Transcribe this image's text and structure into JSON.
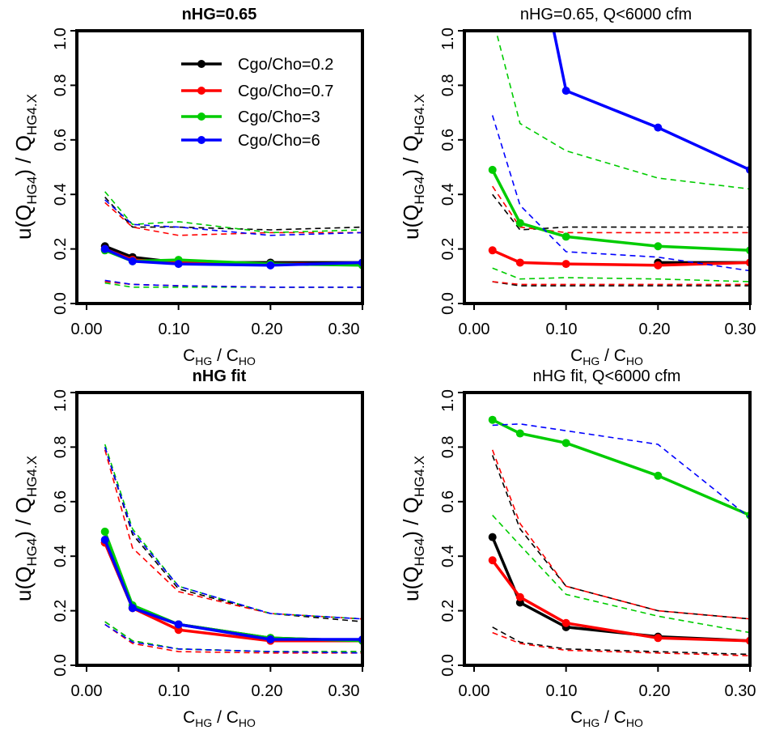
{
  "colors": {
    "black": "#000000",
    "red": "#ff0000",
    "green": "#00cc00",
    "blue": "#0000ff"
  },
  "chart_data": [
    {
      "type": "line",
      "title": "nHG=0.65",
      "xlabel": {
        "base": "C",
        "sub1": "HG",
        "mid": " / C",
        "sub2": "HO"
      },
      "ylabel": {
        "pre": "u(Q",
        "sub1": "HG4",
        "mid": ") / Q",
        "sub2": "HG4.X"
      },
      "xlim": [
        0.0,
        0.3
      ],
      "ylim": [
        0.0,
        1.0
      ],
      "xticks": [
        "0.00",
        "0.10",
        "0.20",
        "0.30"
      ],
      "yticks": [
        "0.0",
        "0.2",
        "0.4",
        "0.6",
        "0.8",
        "1.0"
      ],
      "legend": "top-right",
      "x": [
        0.02,
        0.05,
        0.1,
        0.2,
        0.3
      ],
      "series": [
        {
          "name": "Cgo/Cho=0.2",
          "color": "black",
          "values": [
            0.21,
            0.17,
            0.15,
            0.15,
            0.15
          ],
          "upper": [
            0.39,
            0.28,
            0.28,
            0.27,
            0.28
          ],
          "lower": [
            0.08,
            0.07,
            0.065,
            0.06,
            0.06
          ]
        },
        {
          "name": "Cgo/Cho=0.7",
          "color": "red",
          "values": [
            0.2,
            0.16,
            0.15,
            0.145,
            0.145
          ],
          "upper": [
            0.37,
            0.28,
            0.25,
            0.26,
            0.26
          ],
          "lower": [
            0.08,
            0.07,
            0.065,
            0.06,
            0.06
          ]
        },
        {
          "name": "Cgo/Cho=3",
          "color": "green",
          "values": [
            0.195,
            0.155,
            0.16,
            0.145,
            0.14
          ],
          "upper": [
            0.41,
            0.29,
            0.3,
            0.26,
            0.27
          ],
          "lower": [
            0.075,
            0.06,
            0.06,
            0.06,
            0.06
          ]
        },
        {
          "name": "Cgo/Cho=6",
          "color": "blue",
          "values": [
            0.2,
            0.155,
            0.145,
            0.14,
            0.15
          ],
          "upper": [
            0.38,
            0.29,
            0.28,
            0.25,
            0.26
          ],
          "lower": [
            0.085,
            0.07,
            0.065,
            0.06,
            0.06
          ]
        }
      ]
    },
    {
      "type": "line",
      "title": "nHG=0.65, Q<6000 cfm",
      "xlabel": {
        "base": "C",
        "sub1": "HG",
        "mid": " / C",
        "sub2": "HO"
      },
      "ylabel": {
        "pre": "u(Q",
        "sub1": "HG4",
        "mid": ") / Q",
        "sub2": "HG4.X"
      },
      "xlim": [
        0.0,
        0.3
      ],
      "ylim": [
        0.0,
        1.0
      ],
      "xticks": [
        "0.00",
        "0.10",
        "0.20",
        "0.30"
      ],
      "yticks": [
        "0.0",
        "0.2",
        "0.4",
        "0.6",
        "0.8",
        "1.0"
      ],
      "x": [
        0.02,
        0.05,
        0.1,
        0.2,
        0.3
      ],
      "series": [
        {
          "name": "Cgo/Cho=0.2",
          "color": "black",
          "values": [
            null,
            null,
            null,
            0.15,
            0.15
          ],
          "upper": [
            0.4,
            0.27,
            0.28,
            0.28,
            0.28
          ],
          "lower": [
            0.08,
            0.065,
            0.065,
            0.065,
            0.065
          ]
        },
        {
          "name": "Cgo/Cho=0.7",
          "color": "red",
          "values": [
            0.195,
            0.15,
            0.145,
            0.14,
            0.15
          ],
          "upper": [
            0.43,
            0.28,
            0.26,
            0.26,
            0.26
          ],
          "lower": [
            0.08,
            0.07,
            0.07,
            0.07,
            0.07
          ]
        },
        {
          "name": "Cgo/Cho=3",
          "color": "green",
          "values": [
            0.49,
            0.295,
            0.245,
            0.21,
            0.195
          ],
          "upper": [
            1.05,
            0.66,
            0.56,
            0.46,
            0.42
          ],
          "lower": [
            0.13,
            0.09,
            0.095,
            0.09,
            0.08
          ]
        },
        {
          "name": "Cgo/Cho=6",
          "color": "blue",
          "values": [
            null,
            1.6,
            0.78,
            0.645,
            0.49
          ],
          "upper": [
            0.69,
            0.36,
            0.19,
            0.17,
            0.12
          ],
          "lower": [
            null,
            null,
            null,
            null,
            null
          ]
        }
      ]
    },
    {
      "type": "line",
      "title": "nHG fit",
      "xlabel": {
        "base": "C",
        "sub1": "HG",
        "mid": " / C",
        "sub2": "HO"
      },
      "ylabel": {
        "pre": "u(Q",
        "sub1": "HG4",
        "mid": ") / Q",
        "sub2": "HG4.X"
      },
      "xlim": [
        0.0,
        0.3
      ],
      "ylim": [
        0.0,
        1.0
      ],
      "xticks": [
        "0.00",
        "0.10",
        "0.20",
        "0.30"
      ],
      "yticks": [
        "0.0",
        "0.2",
        "0.4",
        "0.6",
        "0.8",
        "1.0"
      ],
      "x": [
        0.02,
        0.05,
        0.1,
        0.2,
        0.3
      ],
      "series": [
        {
          "name": "Cgo/Cho=0.2",
          "color": "black",
          "values": [
            0.45,
            0.21,
            0.15,
            0.1,
            0.09
          ],
          "upper": [
            0.8,
            0.48,
            0.28,
            0.19,
            0.16
          ],
          "lower": [
            0.16,
            0.09,
            0.06,
            0.05,
            0.05
          ]
        },
        {
          "name": "Cgo/Cho=0.7",
          "color": "red",
          "values": [
            0.45,
            0.21,
            0.13,
            0.09,
            0.09
          ],
          "upper": [
            0.79,
            0.43,
            0.27,
            0.19,
            0.17
          ],
          "lower": [
            0.15,
            0.08,
            0.05,
            0.045,
            0.045
          ]
        },
        {
          "name": "Cgo/Cho=3",
          "color": "green",
          "values": [
            0.49,
            0.22,
            0.15,
            0.1,
            0.09
          ],
          "upper": [
            0.81,
            0.5,
            0.29,
            0.19,
            0.17
          ],
          "lower": [
            0.16,
            0.09,
            0.06,
            0.05,
            0.05
          ]
        },
        {
          "name": "Cgo/Cho=6",
          "color": "blue",
          "values": [
            0.46,
            0.21,
            0.15,
            0.095,
            0.095
          ],
          "upper": [
            0.8,
            0.49,
            0.29,
            0.19,
            0.17
          ],
          "lower": [
            0.15,
            0.085,
            0.06,
            0.05,
            0.045
          ]
        }
      ]
    },
    {
      "type": "line",
      "title": "nHG fit, Q<6000 cfm",
      "xlabel": {
        "base": "C",
        "sub1": "HG",
        "mid": " / C",
        "sub2": "HO"
      },
      "ylabel": {
        "pre": "u(Q",
        "sub1": "HG4",
        "mid": ") / Q",
        "sub2": "HG4.X"
      },
      "xlim": [
        0.0,
        0.3
      ],
      "ylim": [
        0.0,
        1.0
      ],
      "xticks": [
        "0.00",
        "0.10",
        "0.20",
        "0.30"
      ],
      "yticks": [
        "0.0",
        "0.2",
        "0.4",
        "0.6",
        "0.8",
        "1.0"
      ],
      "x": [
        0.02,
        0.05,
        0.1,
        0.2,
        0.3
      ],
      "series": [
        {
          "name": "Cgo/Cho=0.2",
          "color": "black",
          "values": [
            0.47,
            0.23,
            0.14,
            0.105,
            0.09
          ],
          "upper": [
            0.77,
            0.5,
            0.29,
            0.2,
            0.17
          ],
          "lower": [
            0.14,
            0.085,
            0.06,
            0.05,
            0.04
          ]
        },
        {
          "name": "Cgo/Cho=0.7",
          "color": "red",
          "values": [
            0.385,
            0.25,
            0.155,
            0.1,
            0.09
          ],
          "upper": [
            0.79,
            0.52,
            0.29,
            0.2,
            0.17
          ],
          "lower": [
            0.12,
            0.08,
            0.055,
            0.045,
            0.035
          ]
        },
        {
          "name": "Cgo/Cho=3",
          "color": "green",
          "values": [
            0.9,
            0.85,
            0.815,
            0.695,
            0.55
          ],
          "upper": [
            0.55,
            0.44,
            0.26,
            0.18,
            0.12
          ],
          "lower": [
            null,
            null,
            null,
            null,
            null
          ]
        },
        {
          "name": "Cgo/Cho=6",
          "color": "blue",
          "values": [
            null,
            null,
            null,
            null,
            null
          ],
          "upper": [
            0.88,
            0.885,
            0.86,
            0.81,
            0.54
          ],
          "lower": [
            null,
            null,
            null,
            null,
            null
          ]
        }
      ]
    }
  ]
}
